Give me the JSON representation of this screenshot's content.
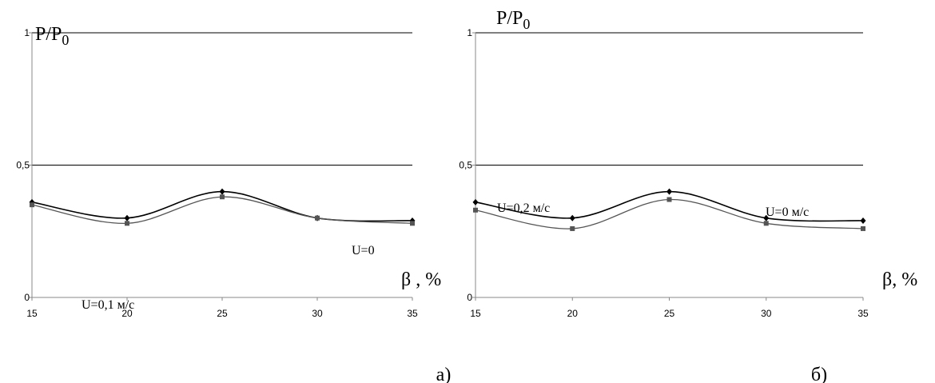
{
  "chart_data": [
    {
      "type": "line",
      "panel_label": "а)",
      "ylabel": "P/P",
      "ylabel_sub": "0",
      "xlabel": "β , %",
      "x": [
        15,
        20,
        25,
        30,
        35
      ],
      "xlim": [
        15,
        35
      ],
      "ylim": [
        0,
        1
      ],
      "x_ticks": [
        "15",
        "20",
        "25",
        "30",
        "35"
      ],
      "y_ticks": [
        "0",
        "0,5",
        "1"
      ],
      "y_tick_values": [
        0,
        0.5,
        1
      ],
      "grid": "horizontal",
      "series": [
        {
          "name": "U=0",
          "values": [
            0.36,
            0.3,
            0.4,
            0.3,
            0.29
          ],
          "color": "#000000",
          "marker": "diamond"
        },
        {
          "name": "U=0,1 м/с",
          "values": [
            0.35,
            0.28,
            0.38,
            0.3,
            0.28
          ],
          "color": "#555555",
          "marker": "square"
        }
      ]
    },
    {
      "type": "line",
      "panel_label": "б)",
      "ylabel": "P/P",
      "ylabel_sub": "0",
      "xlabel": "β, %",
      "x": [
        15,
        20,
        25,
        30,
        35
      ],
      "xlim": [
        15,
        35
      ],
      "ylim": [
        0,
        1
      ],
      "x_ticks": [
        "15",
        "20",
        "25",
        "30",
        "35"
      ],
      "y_ticks": [
        "0",
        "0,5",
        "1"
      ],
      "y_tick_values": [
        0,
        0.5,
        1
      ],
      "grid": "horizontal",
      "series": [
        {
          "name": "U=0 м/с",
          "values": [
            0.36,
            0.3,
            0.4,
            0.3,
            0.29
          ],
          "color": "#000000",
          "marker": "diamond"
        },
        {
          "name": "U=0,2 м/с",
          "values": [
            0.33,
            0.26,
            0.37,
            0.28,
            0.26
          ],
          "color": "#555555",
          "marker": "square"
        }
      ]
    }
  ]
}
